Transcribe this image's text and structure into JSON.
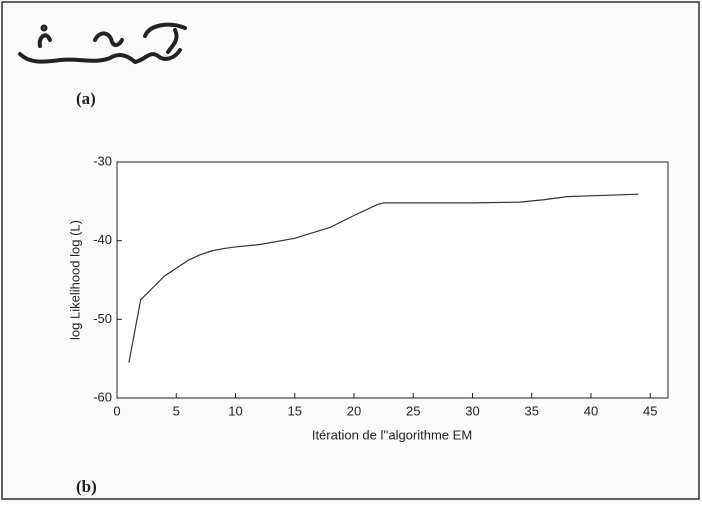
{
  "labels": {
    "a": "(a)",
    "b": "(b)"
  },
  "chart_data": {
    "type": "line",
    "ylabel": "log Likelihood log (L)",
    "xlabel": "Itération de l''algorithme EM",
    "x": [
      1,
      2,
      3,
      4,
      5,
      6,
      7,
      8,
      9,
      10,
      12,
      15,
      18,
      20,
      22,
      22.5,
      25,
      30,
      34,
      36,
      38,
      40,
      44
    ],
    "series": [
      {
        "color": "#333333",
        "values": [
          -55.5,
          -47.5,
          -46,
          -44.5,
          -43.5,
          -42.5,
          -41.8,
          -41.3,
          -41,
          -40.8,
          -40.5,
          -39.7,
          -38.3,
          -36.8,
          -35.4,
          -35.2,
          -35.2,
          -35.2,
          -35.1,
          -34.8,
          -34.4,
          -34.3,
          -34.1
        ]
      }
    ],
    "xlim": [
      0,
      46.5
    ],
    "ylim": [
      -60,
      -30
    ],
    "xticks": [
      0,
      5,
      10,
      15,
      20,
      25,
      30,
      35,
      40,
      45
    ],
    "yticks": [
      -30,
      -40,
      -50,
      -60
    ]
  }
}
